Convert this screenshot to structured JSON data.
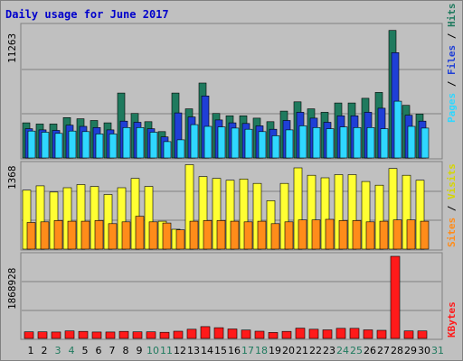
{
  "title": "Daily usage for June 2017",
  "colors": {
    "hits": "#1f7a5e",
    "files": "#1f3fd6",
    "pages": "#2fd7ff",
    "visits": "#ffff33",
    "sites": "#ff8c1a",
    "kbytes": "#ff1a1a",
    "weekend_label": "#1f7a5e",
    "weekday_label": "#000000",
    "title": "#0000cc",
    "panel_bg": "#c0c0c0",
    "grid": "#808080"
  },
  "chart_data": [
    {
      "type": "bar",
      "title": "Daily usage for June 2017",
      "panel": "hits-files-pages",
      "ymax_label": "11263",
      "ylim": [
        0,
        11263
      ],
      "legend_labels": [
        "Pages",
        "Files",
        "Hits"
      ],
      "categories": [
        "1",
        "2",
        "3",
        "4",
        "5",
        "6",
        "7",
        "8",
        "9",
        "10",
        "11",
        "12",
        "13",
        "14",
        "15",
        "16",
        "17",
        "18",
        "19",
        "20",
        "21",
        "22",
        "23",
        "24",
        "25",
        "26",
        "27",
        "28",
        "29",
        "30",
        "31"
      ],
      "weekend_days": [
        "3",
        "4",
        "10",
        "11",
        "17",
        "18",
        "24",
        "25",
        "31"
      ],
      "series": [
        {
          "name": "Hits",
          "values": [
            3000,
            2900,
            2900,
            3450,
            3350,
            3200,
            3000,
            5550,
            3800,
            3100,
            2250,
            5550,
            4200,
            6400,
            3800,
            3600,
            3600,
            3400,
            3100,
            4000,
            4800,
            4200,
            3900,
            4700,
            4700,
            5100,
            5600,
            10900,
            4500,
            3750,
            0
          ]
        },
        {
          "name": "Files",
          "values": [
            2500,
            2400,
            2350,
            2800,
            2700,
            2600,
            2400,
            3150,
            3050,
            2500,
            1800,
            3850,
            3500,
            5300,
            3250,
            3000,
            2950,
            2750,
            2450,
            3200,
            3900,
            3400,
            3050,
            3600,
            3600,
            3900,
            4250,
            9000,
            3650,
            3150,
            0
          ]
        },
        {
          "name": "Pages",
          "values": [
            2300,
            2200,
            2100,
            2300,
            2250,
            2050,
            2050,
            2600,
            2600,
            2200,
            1400,
            1550,
            2850,
            2700,
            2650,
            2550,
            2450,
            2250,
            1900,
            2400,
            2750,
            2600,
            2500,
            2650,
            2600,
            2600,
            2500,
            4850,
            2700,
            2550,
            0
          ]
        }
      ]
    },
    {
      "type": "bar",
      "panel": "visits-sites",
      "ymax_label": "1368",
      "ylim": [
        0,
        1368
      ],
      "legend_labels": [
        "Sites",
        "Visits"
      ],
      "categories": [
        "1",
        "2",
        "3",
        "4",
        "5",
        "6",
        "7",
        "8",
        "9",
        "10",
        "11",
        "12",
        "13",
        "14",
        "15",
        "16",
        "17",
        "18",
        "19",
        "20",
        "21",
        "22",
        "23",
        "24",
        "25",
        "26",
        "27",
        "28",
        "29",
        "30",
        "31"
      ],
      "series": [
        {
          "name": "Visits",
          "values": [
            950,
            1020,
            920,
            990,
            1040,
            1010,
            880,
            990,
            1140,
            1010,
            450,
            320,
            1360,
            1170,
            1140,
            1110,
            1130,
            1060,
            780,
            1060,
            1310,
            1190,
            1150,
            1200,
            1200,
            1090,
            1030,
            1300,
            1190,
            1110,
            0
          ]
        },
        {
          "name": "Sites",
          "values": [
            430,
            440,
            460,
            450,
            450,
            460,
            410,
            440,
            530,
            440,
            420,
            310,
            450,
            460,
            460,
            450,
            440,
            450,
            410,
            440,
            470,
            470,
            480,
            460,
            460,
            440,
            450,
            470,
            470,
            450,
            0
          ]
        }
      ]
    },
    {
      "type": "bar",
      "panel": "kbytes",
      "ymax_label": "1868928",
      "ylim": [
        0,
        1868928
      ],
      "legend_labels": [
        "KBytes"
      ],
      "categories": [
        "1",
        "2",
        "3",
        "4",
        "5",
        "6",
        "7",
        "8",
        "9",
        "10",
        "11",
        "12",
        "13",
        "14",
        "15",
        "16",
        "17",
        "18",
        "19",
        "20",
        "21",
        "22",
        "23",
        "24",
        "25",
        "26",
        "27",
        "28",
        "29",
        "30",
        "31"
      ],
      "series": [
        {
          "name": "KBytes",
          "values": [
            150000,
            150000,
            145000,
            170000,
            160000,
            145000,
            145000,
            160000,
            150000,
            150000,
            140000,
            165000,
            210000,
            270000,
            245000,
            215000,
            190000,
            165000,
            135000,
            160000,
            235000,
            210000,
            195000,
            230000,
            230000,
            195000,
            185000,
            1868928,
            170000,
            170000,
            0
          ]
        }
      ]
    }
  ]
}
